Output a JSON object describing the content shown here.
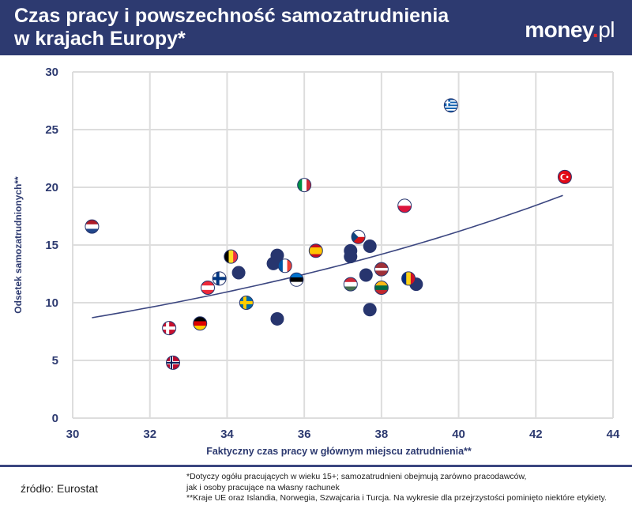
{
  "header": {
    "title_line1": "Czas pracy i powszechność samozatrudnienia",
    "title_line2": "w krajach Europy*",
    "logo": "money.pl"
  },
  "footer": {
    "source": "źródło: Eurostat",
    "note1": "*Dotyczy ogółu pracujących w wieku 15+; samozatrudnieni obejmują zarówno pracodawców,",
    "note2": "jak i osoby pracujące na własny rachunek",
    "note3": "**Kraje UE oraz Islandia, Norwegia, Szwajcaria i Turcja. Na wykresie dla przejrzystości pominięto niektóre etykiety."
  },
  "colors": {
    "header": "#2d3a70",
    "marker": "#27356e",
    "trend": "#3b4680",
    "grid": "#dddddd"
  },
  "chart_data": {
    "type": "scatter",
    "xlabel": "Faktyczny czas pracy w głównym miejscu zatrudnienia**",
    "ylabel": "Odsetek samozatrudnionych**",
    "xlim": [
      30,
      44
    ],
    "ylim": [
      0,
      30
    ],
    "xticks": [
      "30",
      "32",
      "34",
      "36",
      "38",
      "40",
      "42",
      "44"
    ],
    "yticks": [
      "0",
      "5",
      "10",
      "15",
      "20",
      "25",
      "30"
    ],
    "grid": true,
    "points": [
      {
        "x": 30.5,
        "y": 16.6,
        "icon": "flag-nl"
      },
      {
        "x": 39.8,
        "y": 27.1,
        "icon": "flag-gr"
      },
      {
        "x": 42.75,
        "y": 20.9,
        "icon": "flag-tr"
      },
      {
        "x": 36.0,
        "y": 20.2,
        "icon": "flag-it"
      },
      {
        "x": 38.6,
        "y": 18.4,
        "icon": "flag-pl"
      },
      {
        "x": 37.4,
        "y": 15.7,
        "icon": "flag-cz"
      },
      {
        "x": 37.7,
        "y": 14.9,
        "icon": "dot"
      },
      {
        "x": 37.2,
        "y": 14.5,
        "icon": "dot"
      },
      {
        "x": 37.2,
        "y": 14.0,
        "icon": "dot"
      },
      {
        "x": 36.3,
        "y": 14.5,
        "icon": "flag-es"
      },
      {
        "x": 34.1,
        "y": 14.0,
        "icon": "flag-be"
      },
      {
        "x": 35.3,
        "y": 14.1,
        "icon": "dot"
      },
      {
        "x": 35.2,
        "y": 13.4,
        "icon": "dot"
      },
      {
        "x": 35.5,
        "y": 13.2,
        "icon": "flag-fr"
      },
      {
        "x": 34.3,
        "y": 12.6,
        "icon": "dot"
      },
      {
        "x": 33.8,
        "y": 12.1,
        "icon": "flag-fi"
      },
      {
        "x": 35.8,
        "y": 12.0,
        "icon": "flag-ee"
      },
      {
        "x": 33.5,
        "y": 11.3,
        "icon": "flag-at"
      },
      {
        "x": 38.0,
        "y": 12.9,
        "icon": "flag-lv"
      },
      {
        "x": 37.6,
        "y": 12.4,
        "icon": "dot"
      },
      {
        "x": 37.2,
        "y": 11.6,
        "icon": "flag-hu"
      },
      {
        "x": 38.0,
        "y": 11.3,
        "icon": "flag-lt"
      },
      {
        "x": 38.9,
        "y": 11.6,
        "icon": "dot"
      },
      {
        "x": 38.7,
        "y": 12.1,
        "icon": "flag-ro"
      },
      {
        "x": 34.5,
        "y": 10.0,
        "icon": "flag-se"
      },
      {
        "x": 37.7,
        "y": 9.4,
        "icon": "dot"
      },
      {
        "x": 35.3,
        "y": 8.6,
        "icon": "dot"
      },
      {
        "x": 33.3,
        "y": 8.2,
        "icon": "flag-de"
      },
      {
        "x": 32.5,
        "y": 7.8,
        "icon": "flag-dk"
      },
      {
        "x": 32.6,
        "y": 4.8,
        "icon": "flag-no"
      }
    ],
    "trendline": {
      "type": "exponential",
      "x": [
        30.5,
        36.0,
        42.7
      ],
      "y": [
        8.7,
        12.5,
        19.3
      ]
    }
  }
}
